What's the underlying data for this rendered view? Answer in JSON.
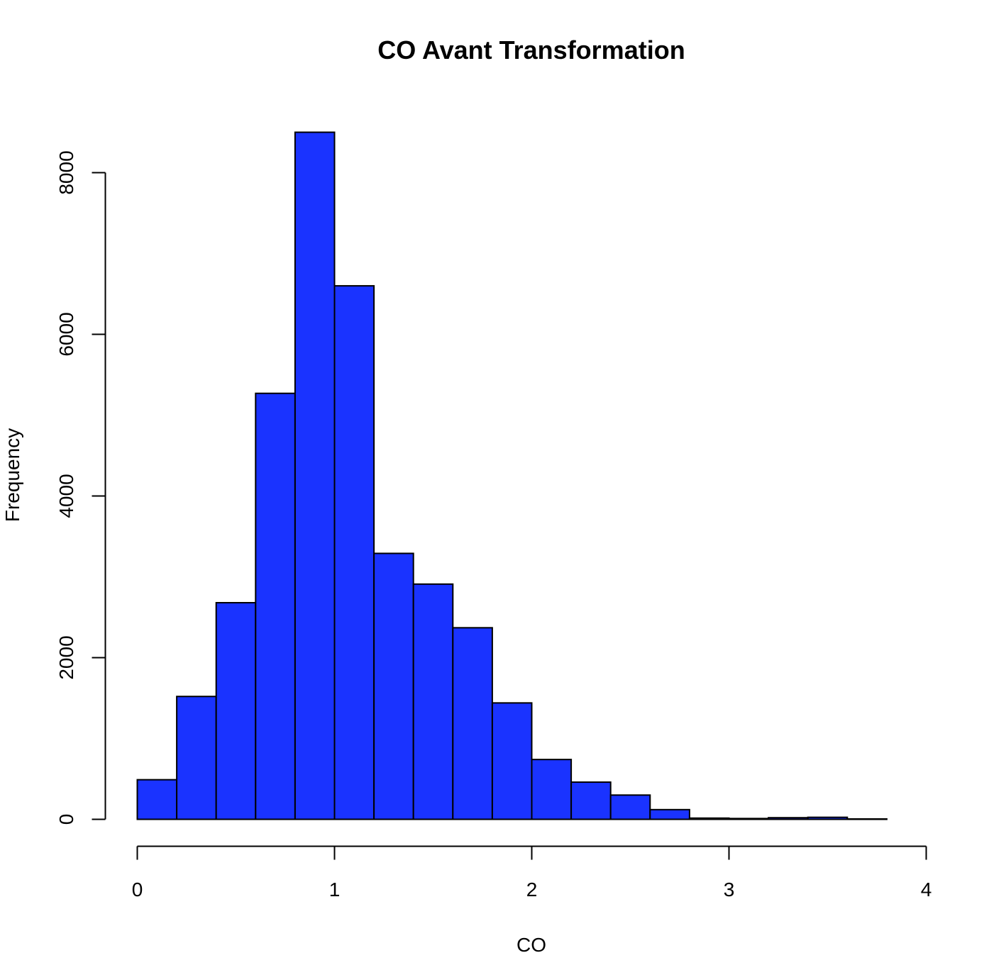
{
  "chart_data": {
    "type": "bar",
    "title": "CO Avant Transformation",
    "xlabel": "CO",
    "ylabel": "Frequency",
    "bin_edges": [
      0,
      0.2,
      0.4,
      0.6,
      0.8,
      1.0,
      1.2,
      1.4,
      1.6,
      1.8,
      2.0,
      2.2,
      2.4,
      2.6,
      2.8,
      3.0,
      3.2,
      3.4,
      3.6,
      3.8,
      4.0
    ],
    "values": [
      490,
      1520,
      2680,
      5270,
      8500,
      6600,
      3290,
      2910,
      2370,
      1440,
      740,
      460,
      300,
      120,
      15,
      10,
      20,
      25,
      5,
      0
    ],
    "xlim": [
      0,
      4
    ],
    "ylim": [
      0,
      8500
    ],
    "x_ticks": [
      "0",
      "1",
      "2",
      "3",
      "4"
    ],
    "y_ticks": [
      "0",
      "2000",
      "4000",
      "6000",
      "8000"
    ],
    "bar_color": "#1a33ff",
    "grid": false
  }
}
